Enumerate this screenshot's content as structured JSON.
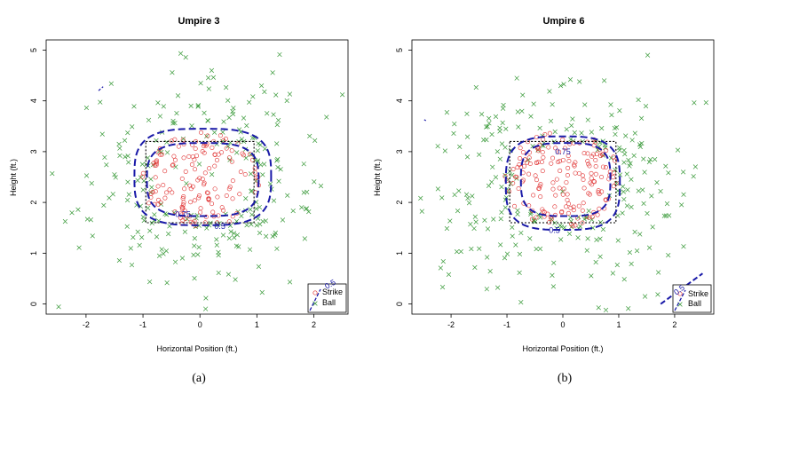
{
  "chart_data": [
    {
      "type": "scatter",
      "title": "Umpire 3",
      "xlabel": "Horizontal Position (ft.)",
      "ylabel": "Height (ft.)",
      "xlim": [
        -2.7,
        2.6
      ],
      "ylim": [
        -0.2,
        5.2
      ],
      "xticks": [
        -2,
        -1,
        0,
        1,
        2
      ],
      "yticks": [
        0,
        1,
        2,
        3,
        4,
        5
      ],
      "caption": "(a)",
      "legend": {
        "position": "bottom-right",
        "entries": [
          "Strike",
          "Ball"
        ],
        "overlay_label": "0.5"
      },
      "series": [
        {
          "name": "Strike",
          "marker": "circle",
          "color": "#e03030",
          "seed": 13,
          "count": 150
        },
        {
          "name": "Ball",
          "marker": "x",
          "color": "#3a9a3a",
          "seed": 37,
          "count": 260
        }
      ],
      "strike_zone": {
        "x": [
          -0.95,
          0.95
        ],
        "y": [
          1.6,
          3.2
        ]
      },
      "contours": [
        {
          "level": "0.5",
          "cx": 0.05,
          "cy": 2.5,
          "rx": 1.2,
          "ry": 0.95,
          "label_at": [
            0.35,
            1.53
          ]
        },
        {
          "level": "0.75",
          "cx": 0.05,
          "cy": 2.45,
          "rx": 0.98,
          "ry": 0.72,
          "label_at": [
            -0.3,
            1.77
          ]
        }
      ],
      "stray_marks": [
        {
          "x1": -1.78,
          "y1": 4.2,
          "x2": -1.7,
          "y2": 4.28
        }
      ]
    },
    {
      "type": "scatter",
      "title": "Umpire 6",
      "xlabel": "Horizontal Position (ft.)",
      "ylabel": "Height (ft.)",
      "xlim": [
        -2.7,
        2.7
      ],
      "ylim": [
        -0.2,
        5.2
      ],
      "xticks": [
        -2,
        -1,
        0,
        1,
        2
      ],
      "yticks": [
        0,
        1,
        2,
        3,
        4,
        5
      ],
      "caption": "(b)",
      "legend": {
        "position": "bottom-right",
        "entries": [
          "Strike",
          "Ball"
        ],
        "overlay_label": "0.5"
      },
      "series": [
        {
          "name": "Strike",
          "marker": "circle",
          "color": "#e03030",
          "seed": 71,
          "count": 170
        },
        {
          "name": "Ball",
          "marker": "x",
          "color": "#3a9a3a",
          "seed": 91,
          "count": 270
        }
      ],
      "strike_zone": {
        "x": [
          -0.95,
          0.95
        ],
        "y": [
          1.6,
          3.2
        ]
      },
      "contours": [
        {
          "level": "0.5",
          "cx": 0.0,
          "cy": 2.38,
          "rx": 1.02,
          "ry": 0.92,
          "label_at": [
            -0.15,
            1.45
          ]
        },
        {
          "level": "0.75",
          "cx": 0.05,
          "cy": 2.45,
          "rx": 0.8,
          "ry": 0.72,
          "label_at": [
            0.0,
            3.0
          ]
        }
      ],
      "stray_marks": [
        {
          "x1": -2.48,
          "y1": 3.63,
          "x2": -2.45,
          "y2": 3.61
        }
      ],
      "extra_line": {
        "x1": 1.75,
        "y1": 0.0,
        "x2": 2.5,
        "y2": 0.6,
        "label": "0.5"
      }
    }
  ]
}
